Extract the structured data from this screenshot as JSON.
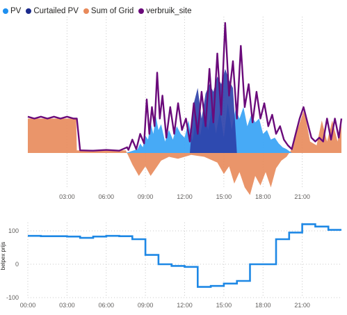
{
  "chart_data": [
    {
      "type": "area",
      "legend": {
        "position": "top-left",
        "items": [
          {
            "label": "PV",
            "color": "#1E90F0"
          },
          {
            "label": "Curtailed PV",
            "color": "#1B2A8C"
          },
          {
            "label": "Sum of Grid",
            "color": "#E8895A"
          },
          {
            "label": "verbruik_site",
            "color": "#6A0A7A"
          }
        ]
      },
      "x_ticks": [
        "03:00",
        "06:00",
        "09:00",
        "12:00",
        "15:00",
        "18:00",
        "21:00"
      ],
      "x_range": [
        0,
        24
      ],
      "y_range": [
        -1,
        3
      ],
      "grid": true,
      "series": [
        {
          "name": "PV",
          "x": [
            0,
            7.5,
            8.4,
            8.6,
            8.8,
            9.0,
            9.2,
            9.4,
            9.6,
            9.8,
            10.0,
            10.2,
            10.5,
            10.8,
            11.1,
            11.4,
            11.7,
            12.0,
            12.3,
            12.6,
            12.9,
            13.2,
            13.5,
            13.8,
            14.1,
            14.4,
            14.7,
            15.0,
            15.3,
            15.6,
            15.9,
            16.2,
            16.5,
            16.8,
            17.1,
            17.4,
            17.7,
            18.0,
            18.3,
            18.6,
            18.9,
            19.2,
            19.5,
            19.8,
            20.2,
            24
          ],
          "values": [
            0,
            0,
            0.1,
            0.25,
            0.15,
            0.45,
            0.35,
            0.8,
            0.5,
            0.95,
            0.6,
            0.75,
            0.3,
            0.6,
            0.35,
            0.7,
            0.5,
            0.4,
            0.85,
            0.3,
            1.0,
            0.45,
            1.1,
            0.6,
            1.2,
            0.5,
            1.1,
            0.4,
            1.3,
            0.6,
            1.15,
            0.9,
            1.2,
            0.7,
            1.0,
            0.8,
            0.9,
            0.5,
            0.6,
            0.35,
            0.4,
            0.25,
            0.15,
            0.1,
            0,
            0
          ]
        },
        {
          "name": "Curtailed PV",
          "x": [
            12.4,
            12.7,
            13.0,
            13.3,
            13.6,
            13.9,
            14.2,
            14.5,
            14.8,
            15.1,
            15.4,
            15.7,
            16.0
          ],
          "values": [
            0,
            1.3,
            1.7,
            0.9,
            1.55,
            1.8,
            1.6,
            2.0,
            1.8,
            2.2,
            1.9,
            1.7,
            0
          ]
        },
        {
          "name": "Sum of Grid",
          "x": [
            0,
            3.7,
            3.75,
            7.5,
            8.0,
            8.5,
            9.0,
            9.4,
            9.8,
            10.2,
            10.8,
            11.5,
            12.5,
            13.5,
            14.5,
            15.0,
            15.4,
            15.8,
            16.2,
            16.6,
            17.0,
            17.4,
            17.8,
            18.2,
            18.6,
            19.0,
            19.4,
            19.8,
            20.2,
            20.4,
            21.1,
            21.3,
            21.6,
            22.1,
            22.5,
            22.9,
            23.3,
            23.7,
            24
          ],
          "values": [
            0.9,
            0.9,
            0.07,
            0.07,
            -0.3,
            -0.6,
            -0.35,
            -0.6,
            -0.4,
            -0.2,
            -0.1,
            -0.15,
            -0.05,
            -0.1,
            -0.25,
            -0.55,
            -0.35,
            -0.8,
            -0.5,
            -0.9,
            -1.1,
            -0.6,
            -0.85,
            -0.5,
            -0.9,
            -0.4,
            -0.2,
            -0.1,
            0.1,
            0.35,
            1.1,
            0.85,
            0.3,
            0.2,
            0.85,
            0.3,
            0.85,
            0.3,
            0.85
          ]
        },
        {
          "name": "verbruik_site",
          "x": [
            0,
            0.5,
            1.0,
            1.5,
            2.0,
            2.5,
            3.0,
            3.5,
            3.75,
            4.0,
            5.0,
            6.0,
            7.0,
            7.6,
            7.7,
            8.0,
            8.3,
            8.6,
            8.9,
            9.1,
            9.3,
            9.5,
            9.7,
            9.9,
            10.1,
            10.3,
            10.6,
            10.9,
            11.2,
            11.5,
            11.8,
            12.1,
            12.4,
            12.7,
            13.0,
            13.3,
            13.6,
            13.9,
            14.2,
            14.5,
            14.8,
            15.1,
            15.4,
            15.7,
            16.0,
            16.3,
            16.6,
            16.9,
            17.2,
            17.5,
            17.8,
            18.1,
            18.4,
            18.7,
            19.0,
            19.3,
            19.6,
            19.9,
            20.2,
            20.5,
            20.8,
            21.1,
            21.4,
            21.7,
            22.0,
            22.3,
            22.6,
            22.9,
            23.2,
            23.5,
            23.8,
            24
          ],
          "values": [
            0.95,
            0.9,
            0.95,
            0.9,
            0.95,
            0.9,
            0.95,
            0.9,
            0.9,
            0.07,
            0.06,
            0.08,
            0.06,
            0.15,
            0.08,
            0.35,
            0.1,
            0.5,
            0.25,
            1.4,
            0.5,
            1.2,
            0.7,
            2.1,
            0.9,
            1.5,
            0.4,
            1.2,
            0.5,
            1.3,
            0.6,
            0.9,
            0.3,
            1.3,
            0.5,
            1.6,
            0.7,
            2.2,
            0.8,
            2.6,
            1.0,
            3.4,
            1.5,
            2.4,
            0.9,
            2.8,
            1.2,
            1.8,
            0.8,
            1.6,
            0.9,
            1.3,
            0.7,
            1.0,
            0.5,
            0.7,
            0.35,
            0.2,
            0.1,
            0.5,
            0.9,
            1.2,
            0.8,
            0.4,
            0.3,
            0.4,
            0.3,
            0.9,
            0.35,
            0.9,
            0.4,
            0.9
          ]
        }
      ]
    },
    {
      "type": "line",
      "ylabel": "belpex prijs",
      "x_ticks": [
        "00:00",
        "03:00",
        "06:00",
        "09:00",
        "12:00",
        "15:00",
        "18:00",
        "21:00"
      ],
      "x_range": [
        0,
        24
      ],
      "y_ticks": [
        100,
        0,
        -100
      ],
      "ylim": [
        -100,
        120
      ],
      "grid": true,
      "series": [
        {
          "name": "belpex prijs",
          "color": "#1E88E5",
          "x": [
            0,
            1,
            2,
            3,
            4,
            5,
            6,
            7,
            8,
            9,
            10,
            11,
            12,
            13,
            14,
            15,
            16,
            17,
            18,
            19,
            20,
            21,
            22,
            23,
            24
          ],
          "values": [
            85,
            84,
            84,
            83,
            79,
            83,
            85,
            84,
            75,
            28,
            0,
            -5,
            -8,
            -68,
            -65,
            -58,
            -50,
            0,
            0,
            75,
            95,
            120,
            113,
            103,
            95
          ]
        }
      ]
    }
  ]
}
